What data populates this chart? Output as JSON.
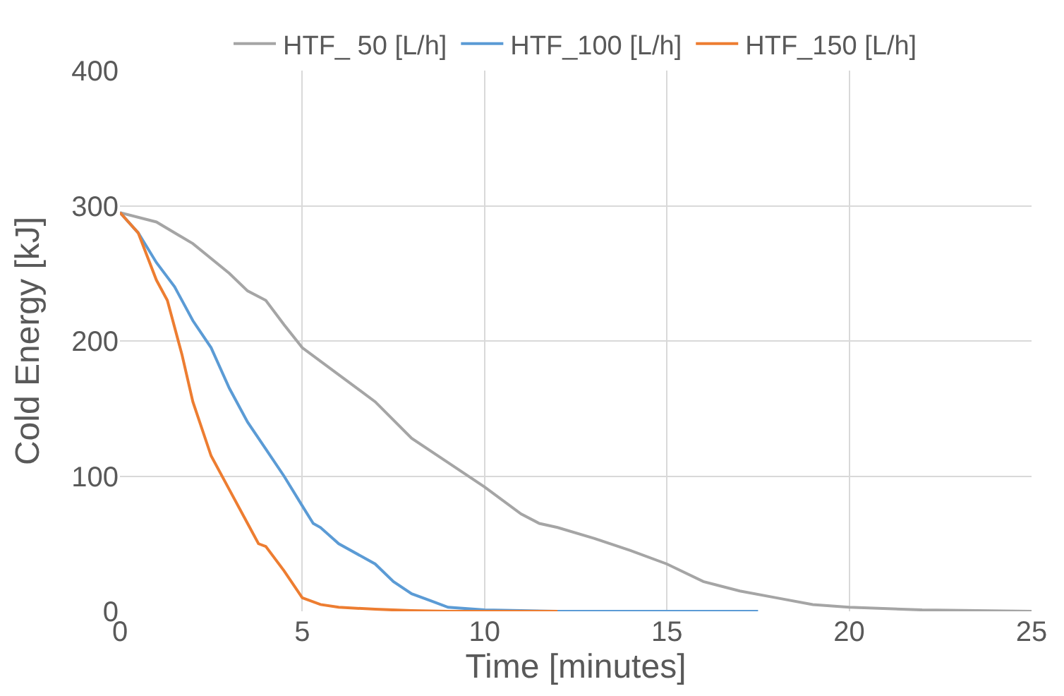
{
  "chart_data": {
    "type": "line",
    "xlabel": "Time [minutes]",
    "ylabel": "Cold Energy [kJ]",
    "xlim": [
      0,
      25
    ],
    "xticks": [
      0,
      5,
      10,
      15,
      20,
      25
    ],
    "ylim": [
      0,
      400
    ],
    "yticks": [
      0,
      100,
      200,
      300,
      400
    ],
    "grid": true,
    "legend": "top",
    "marker": "none",
    "line_style": "solid",
    "series": [
      {
        "name": "HTF_ 50 [L/h]",
        "color": "#a5a5a5",
        "x": [
          0,
          1,
          2,
          3,
          3.5,
          4,
          4.5,
          5,
          6,
          7,
          8,
          9,
          10,
          11,
          11.5,
          12,
          13,
          14,
          15,
          16,
          17,
          18,
          19,
          20,
          22,
          25
        ],
        "values": [
          295,
          288,
          272,
          250,
          237,
          230,
          212,
          195,
          175,
          155,
          128,
          110,
          92,
          72,
          65,
          62,
          54,
          45,
          35,
          22,
          15,
          10,
          5,
          3,
          1,
          0
        ]
      },
      {
        "name": "HTF_100 [L/h]",
        "color": "#5b9bd5",
        "x": [
          0,
          0.5,
          1,
          1.5,
          2,
          2.5,
          3,
          3.5,
          4,
          4.5,
          5,
          5.3,
          5.5,
          6,
          7,
          7.5,
          8,
          8.5,
          9,
          10,
          12,
          17.5
        ],
        "values": [
          295,
          280,
          258,
          240,
          215,
          195,
          165,
          140,
          120,
          100,
          78,
          65,
          62,
          50,
          35,
          22,
          13,
          8,
          3,
          1,
          0,
          0
        ]
      },
      {
        "name": "HTF_150 [L/h]",
        "color": "#ed7d31",
        "x": [
          0,
          0.5,
          1,
          1.3,
          1.7,
          2,
          2.5,
          3,
          3.5,
          3.8,
          4,
          4.5,
          5,
          5.5,
          6,
          7,
          8,
          9,
          12
        ],
        "values": [
          295,
          280,
          245,
          230,
          190,
          155,
          115,
          90,
          65,
          50,
          48,
          30,
          10,
          5,
          3,
          1.5,
          0.5,
          0,
          0
        ]
      }
    ]
  }
}
